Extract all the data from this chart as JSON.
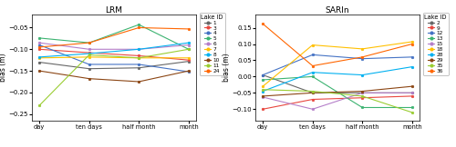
{
  "x_labels": [
    "day",
    "ten days",
    "half month",
    "month"
  ],
  "lrm": {
    "title": "LRM",
    "ylabel": "bias (m)",
    "ylim": [
      -0.265,
      -0.02
    ],
    "yticks": [
      -0.25,
      -0.2,
      -0.15,
      -0.1,
      -0.05
    ],
    "series": {
      "1": {
        "color": "#666666",
        "values": [
          -0.13,
          -0.145,
          -0.143,
          -0.128
        ]
      },
      "3": {
        "color": "#e8473f",
        "values": [
          -0.1,
          -0.108,
          -0.115,
          -0.125
        ]
      },
      "4": {
        "color": "#4472c4",
        "values": [
          -0.09,
          -0.135,
          -0.135,
          -0.152
        ]
      },
      "5": {
        "color": "#3cb371",
        "values": [
          -0.074,
          -0.085,
          -0.043,
          -0.1
        ]
      },
      "6": {
        "color": "#b57fc9",
        "values": [
          -0.085,
          -0.1,
          -0.1,
          -0.09
        ]
      },
      "7": {
        "color": "#ffc000",
        "values": [
          -0.12,
          -0.118,
          -0.12,
          -0.12
        ]
      },
      "8": {
        "color": "#00b0f0",
        "values": [
          -0.118,
          -0.11,
          -0.1,
          -0.085
        ]
      },
      "10": {
        "color": "#8b4513",
        "values": [
          -0.15,
          -0.168,
          -0.175,
          -0.15
        ]
      },
      "11": {
        "color": "#9acd32",
        "values": [
          -0.23,
          -0.113,
          -0.12,
          -0.1
        ]
      },
      "24": {
        "color": "#ff6600",
        "values": [
          -0.095,
          -0.085,
          -0.05,
          -0.053
        ]
      }
    }
  },
  "sarin": {
    "title": "SARIn",
    "ylabel": "bias (m)",
    "ylim": [
      -0.135,
      0.19
    ],
    "yticks": [
      -0.1,
      -0.05,
      0.0,
      0.05,
      0.1,
      0.15
    ],
    "series": {
      "2": {
        "color": "#666666",
        "values": [
          0.005,
          -0.05,
          -0.05,
          -0.05
        ]
      },
      "9": {
        "color": "#e8473f",
        "values": [
          -0.1,
          -0.07,
          -0.065,
          -0.06
        ]
      },
      "12": {
        "color": "#4472c4",
        "values": [
          0.005,
          0.067,
          0.055,
          0.06
        ]
      },
      "13": {
        "color": "#3cb371",
        "values": [
          -0.01,
          0.0,
          -0.095,
          -0.095
        ]
      },
      "15": {
        "color": "#b57fc9",
        "values": [
          -0.063,
          -0.1,
          -0.05,
          -0.05
        ]
      },
      "18": {
        "color": "#ffc000",
        "values": [
          -0.03,
          0.097,
          0.085,
          0.107
        ]
      },
      "28": {
        "color": "#00b0f0",
        "values": [
          -0.045,
          0.013,
          0.005,
          0.03
        ]
      },
      "29": {
        "color": "#8b4513",
        "values": [
          -0.06,
          -0.05,
          -0.045,
          -0.03
        ]
      },
      "35": {
        "color": "#9acd32",
        "values": [
          -0.04,
          -0.045,
          -0.06,
          -0.11
        ]
      },
      "36": {
        "color": "#ff6600",
        "values": [
          0.162,
          0.033,
          0.06,
          0.1
        ]
      }
    }
  },
  "figsize": [
    5.0,
    1.62
  ],
  "dpi": 100
}
